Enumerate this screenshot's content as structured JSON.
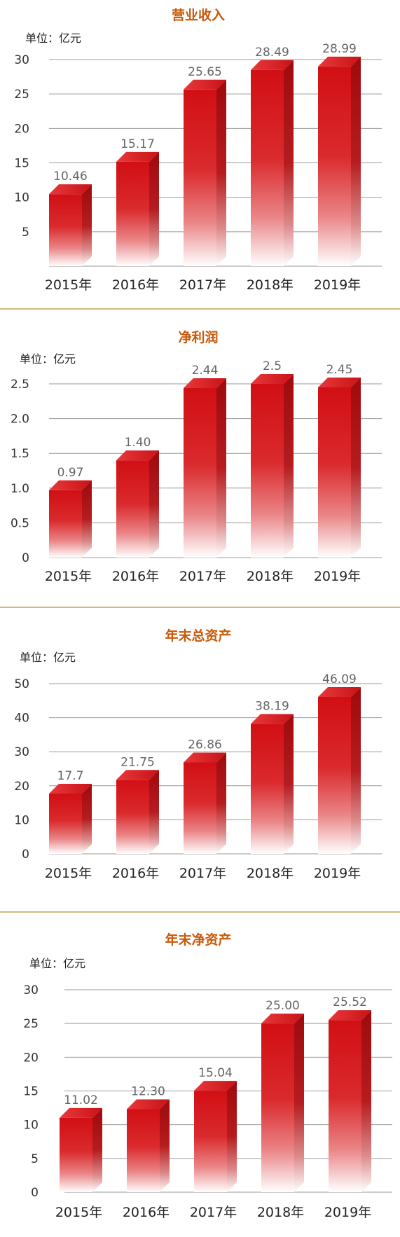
{
  "unit_label": "单位：亿元",
  "chart_data": [
    {
      "type": "bar",
      "title": "营业收入",
      "categories": [
        "2015年",
        "2016年",
        "2017年",
        "2018年",
        "2019年"
      ],
      "values": [
        10.46,
        15.17,
        25.65,
        28.49,
        28.99
      ],
      "value_labels": [
        "10.46",
        "15.17",
        "25.65",
        "28.49",
        "28.99"
      ],
      "yticks": [
        "5",
        "10",
        "15",
        "20",
        "25",
        "30"
      ],
      "ylim": [
        0,
        30
      ],
      "grid": true,
      "colors": {
        "bar": "#d81518",
        "title": "#c85a0a"
      }
    },
    {
      "type": "bar",
      "title": "净利润",
      "categories": [
        "2015年",
        "2016年",
        "2017年",
        "2018年",
        "2019年"
      ],
      "values": [
        0.97,
        1.4,
        2.44,
        2.5,
        2.45
      ],
      "value_labels": [
        "0.97",
        "1.40",
        "2.44",
        "2.5",
        "2.45"
      ],
      "yticks": [
        "0",
        "0.5",
        "1.0",
        "1.5",
        "2.0",
        "2.5"
      ],
      "ylim": [
        0,
        2.5
      ],
      "grid": true,
      "colors": {
        "bar": "#d81518",
        "title": "#c85a0a"
      }
    },
    {
      "type": "bar",
      "title": "年末总资产",
      "categories": [
        "2015年",
        "2016年",
        "2017年",
        "2018年",
        "2019年"
      ],
      "values": [
        17.7,
        21.75,
        26.86,
        38.19,
        46.09
      ],
      "value_labels": [
        "17.7",
        "21.75",
        "26.86",
        "38.19",
        "46.09"
      ],
      "yticks": [
        "0",
        "10",
        "20",
        "30",
        "40",
        "50"
      ],
      "ylim": [
        0,
        50
      ],
      "grid": true,
      "colors": {
        "bar": "#d81518",
        "title": "#c85a0a"
      }
    },
    {
      "type": "bar",
      "title": "年末净资产",
      "categories": [
        "2015年",
        "2016年",
        "2017年",
        "2018年",
        "2019年"
      ],
      "values": [
        11.02,
        12.3,
        15.04,
        25.0,
        25.52
      ],
      "value_labels": [
        "11.02",
        "12.30",
        "15.04",
        "25.00",
        "25.52"
      ],
      "yticks": [
        "0",
        "5",
        "10",
        "15",
        "20",
        "25",
        "30"
      ],
      "ylim": [
        0,
        30
      ],
      "grid": true,
      "colors": {
        "bar": "#d81518",
        "title": "#c85a0a"
      }
    }
  ]
}
